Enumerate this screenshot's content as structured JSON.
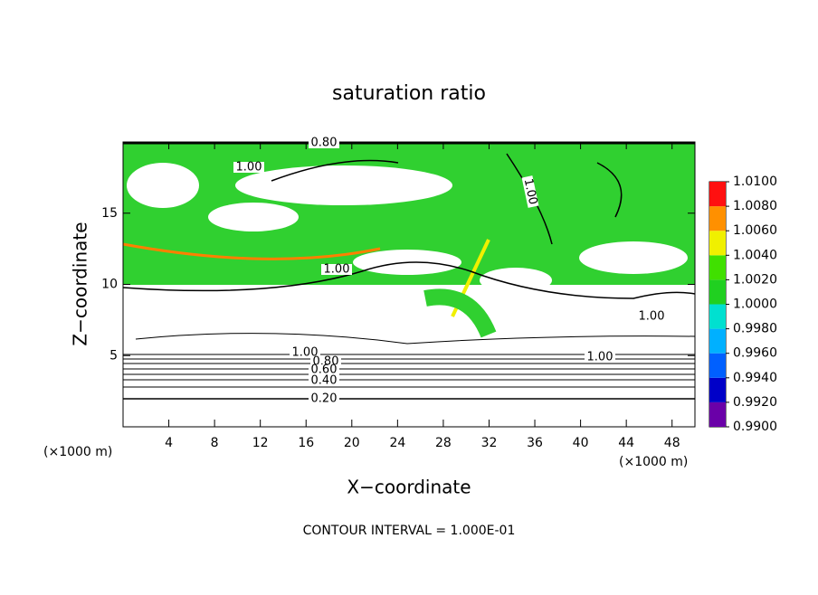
{
  "chart_data": {
    "type": "contour",
    "title": "saturation ratio",
    "xlabel": "X−coordinate",
    "ylabel": "Z−coordinate",
    "x_unit": "(×1000 m)",
    "xlim": [
      0,
      50
    ],
    "ylim": [
      0,
      20
    ],
    "xticks": [
      4,
      8,
      12,
      16,
      20,
      24,
      28,
      32,
      36,
      40,
      44,
      48
    ],
    "yticks": [
      5,
      10,
      15
    ],
    "clim": [
      0.99,
      1.01
    ],
    "cticks": [
      {
        "value": 0.99,
        "label": "0.9900"
      },
      {
        "value": 0.992,
        "label": "0.9920"
      },
      {
        "value": 0.994,
        "label": "0.9940"
      },
      {
        "value": 0.996,
        "label": "0.9960"
      },
      {
        "value": 0.998,
        "label": "0.9980"
      },
      {
        "value": 1.0,
        "label": "1.0000"
      },
      {
        "value": 1.002,
        "label": "1.0020"
      },
      {
        "value": 1.004,
        "label": "1.0040"
      },
      {
        "value": 1.006,
        "label": "1.0060"
      },
      {
        "value": 1.008,
        "label": "1.0080"
      },
      {
        "value": 1.01,
        "label": "1.0100"
      }
    ],
    "colors": [
      "#6a00a8",
      "#0000c8",
      "#0060ff",
      "#00b0ff",
      "#00e0d0",
      "#20d020",
      "#40e000",
      "#f0f000",
      "#ff9000",
      "#ff1010"
    ],
    "contour_labels": [
      {
        "value": 0.8,
        "label": "0.80"
      },
      {
        "value": 1.0,
        "label": "1.00"
      },
      {
        "value": 1.0,
        "label": "1.00"
      },
      {
        "value": 1.0,
        "label": "1.00"
      },
      {
        "value": 1.0,
        "label": "1.00"
      },
      {
        "value": 1.0,
        "label": "1.00"
      },
      {
        "value": 1.0,
        "label": "1.00"
      },
      {
        "value": 0.8,
        "label": "0.80"
      },
      {
        "value": 0.6,
        "label": "0.60"
      },
      {
        "value": 0.4,
        "label": "0.40"
      },
      {
        "value": 0.2,
        "label": "0.20"
      }
    ],
    "footnote": "CONTOUR INTERVAL = 1.000E-01"
  }
}
